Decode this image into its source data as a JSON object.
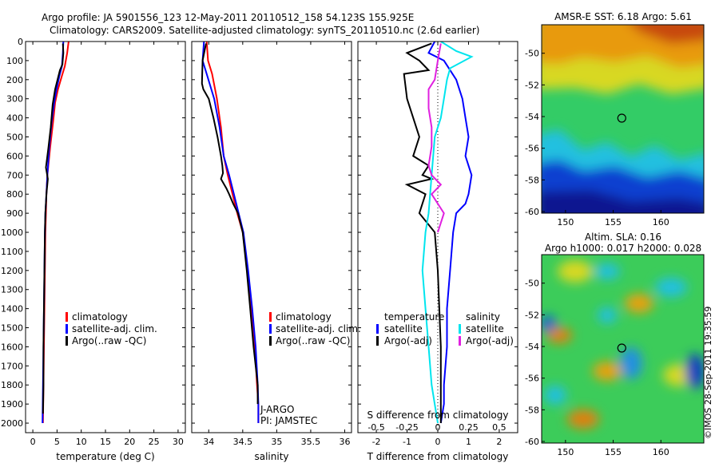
{
  "header": {
    "line1": "Argo profile: JA 5901556_123 12-May-2011 20110512_158 54.123S 155.925E",
    "line2": "Climatology: CARS2009. Satellite-adjusted climatology: synTS_20110510.nc (2.6d earlier)"
  },
  "colors": {
    "climatology": "#ff0000",
    "satellite": "#0000ff",
    "argo": "#000000",
    "satellite_salinity": "#00e5ee",
    "argo_salinity": "#e020e0"
  },
  "chart_data": [
    {
      "type": "line",
      "id": "temperature",
      "xlabel": "temperature (deg C)",
      "ylabel": "",
      "xlim": [
        -1.5,
        31.5
      ],
      "ylim": [
        2050,
        0
      ],
      "xticks": [
        0,
        5,
        10,
        15,
        20,
        25,
        30
      ],
      "yticks": [
        0,
        100,
        200,
        300,
        400,
        500,
        600,
        700,
        800,
        900,
        1000,
        1100,
        1200,
        1300,
        1400,
        1500,
        1600,
        1700,
        1800,
        1900,
        2000
      ],
      "legend": [
        "climatology",
        "satellite-adj. clim.",
        "Argo(..raw -QC)"
      ],
      "series": [
        {
          "name": "climatology",
          "color": "#ff0000",
          "x": [
            7.4,
            7.1,
            6.6,
            6.0,
            5.2,
            4.6,
            4.2,
            3.6,
            3.0,
            2.8,
            2.7,
            2.6,
            2.5,
            2.4,
            2.3,
            2.2,
            2.1
          ],
          "y": [
            0,
            60,
            130,
            180,
            250,
            320,
            420,
            550,
            700,
            800,
            900,
            1000,
            1200,
            1400,
            1600,
            1800,
            2000
          ]
        },
        {
          "name": "satellite-adj. clim.",
          "color": "#0000ff",
          "x": [
            6.3,
            6.2,
            6.0,
            5.5,
            4.9,
            4.4,
            3.9,
            3.4,
            3.0,
            2.8,
            2.6,
            2.5,
            2.4,
            2.3,
            2.2,
            2.1,
            2.0
          ],
          "y": [
            0,
            60,
            130,
            180,
            250,
            320,
            420,
            550,
            700,
            800,
            900,
            1000,
            1200,
            1400,
            1600,
            1800,
            2000
          ]
        },
        {
          "name": "Argo(..raw -QC)",
          "color": "#000000",
          "x": [
            6.2,
            6.3,
            6.1,
            5.6,
            4.6,
            4.1,
            3.7,
            3.2,
            2.7,
            3.1,
            2.8,
            2.6,
            2.5,
            2.4,
            2.3,
            2.2,
            2.2,
            2.1
          ],
          "y": [
            10,
            60,
            120,
            150,
            250,
            330,
            450,
            560,
            660,
            720,
            800,
            900,
            1000,
            1200,
            1400,
            1600,
            1800,
            1950
          ]
        }
      ]
    },
    {
      "type": "line",
      "id": "salinity",
      "xlabel": "salinity",
      "xlim": [
        33.75,
        36.1
      ],
      "ylim": [
        2050,
        0
      ],
      "xticks": [
        34,
        34.5,
        35,
        35.5,
        36
      ],
      "legend": [
        "climatology",
        "satellite-adj. clim.",
        "Argo(..raw -QC)"
      ],
      "annotation": [
        "J-ARGO",
        "PI: JAMSTEC"
      ],
      "series": [
        {
          "name": "climatology",
          "color": "#ff0000",
          "x": [
            33.97,
            33.99,
            34.05,
            34.12,
            34.18,
            34.22,
            34.28,
            34.35,
            34.42,
            34.5,
            34.57,
            34.63,
            34.68,
            34.71,
            34.73,
            34.73
          ],
          "y": [
            0,
            100,
            170,
            300,
            450,
            600,
            700,
            800,
            900,
            1000,
            1200,
            1400,
            1600,
            1800,
            1900,
            2000
          ]
        },
        {
          "name": "satellite-adj. clim.",
          "color": "#0000ff",
          "x": [
            33.93,
            33.91,
            33.97,
            34.08,
            34.16,
            34.22,
            34.3,
            34.37,
            34.44,
            34.51,
            34.58,
            34.64,
            34.69,
            34.72,
            34.73,
            34.73
          ],
          "y": [
            0,
            100,
            170,
            300,
            450,
            600,
            700,
            800,
            900,
            1000,
            1200,
            1400,
            1600,
            1800,
            1900,
            2000
          ]
        },
        {
          "name": "Argo(..raw -QC)",
          "color": "#000000",
          "x": [
            33.96,
            33.91,
            33.9,
            33.92,
            34.0,
            34.07,
            34.13,
            34.18,
            34.2,
            34.21,
            34.18,
            34.26,
            34.3,
            34.36,
            34.43,
            34.5,
            34.56,
            34.61,
            34.66,
            34.69,
            34.72,
            34.72
          ],
          "y": [
            10,
            100,
            220,
            250,
            300,
            400,
            500,
            600,
            650,
            690,
            720,
            770,
            800,
            850,
            900,
            1000,
            1200,
            1400,
            1600,
            1700,
            1800,
            1900
          ]
        }
      ]
    },
    {
      "type": "line",
      "id": "differences",
      "xlabel": "T difference from climatology",
      "xlabel_top": "S difference from climatology",
      "xlim": [
        -2.6,
        2.6
      ],
      "ylim": [
        2050,
        0
      ],
      "xticks": [
        -2,
        -1,
        0,
        1,
        2
      ],
      "xticks_top": [
        "-0.5",
        "-0.25",
        "0",
        "0.25",
        "0.5"
      ],
      "legend_temperature_title": "temperature",
      "legend_salinity_title": "salinity",
      "legend_temperature": [
        "satellite",
        "Argo(-adj)"
      ],
      "legend_salinity": [
        "satellite",
        "Argo(-adj)"
      ],
      "series": [
        {
          "name": "temperature satellite",
          "color": "#0000ff",
          "x": [
            -0.1,
            -0.3,
            0.2,
            0.6,
            0.8,
            0.9,
            1.0,
            0.9,
            1.1,
            1.0,
            0.9,
            0.6,
            0.5,
            0.4,
            0.3,
            0.3,
            0.2,
            0.2,
            0.1
          ],
          "y": [
            0,
            60,
            100,
            200,
            300,
            400,
            500,
            600,
            700,
            800,
            850,
            900,
            1000,
            1200,
            1400,
            1600,
            1800,
            1900,
            2000
          ]
        },
        {
          "name": "temperature Argo(-adj)",
          "color": "#000000",
          "x": [
            -0.2,
            -1.0,
            -0.6,
            -0.3,
            -1.1,
            -1.0,
            -0.8,
            -0.6,
            -0.8,
            -0.3,
            -0.5,
            -0.2,
            -1.0,
            -0.4,
            -0.6,
            -0.1,
            0.0,
            0.1,
            0.1
          ],
          "y": [
            10,
            60,
            100,
            150,
            170,
            300,
            400,
            500,
            600,
            650,
            700,
            720,
            750,
            800,
            900,
            1000,
            1200,
            1600,
            2000
          ]
        },
        {
          "name": "salinity satellite",
          "color": "#00e5ee",
          "x": [
            0.1,
            0.6,
            1.1,
            0.4,
            0.3,
            0.2,
            0.1,
            -0.1,
            -0.2,
            -0.3,
            -0.4,
            -0.5,
            -0.4,
            -0.3,
            -0.2,
            0.0
          ],
          "y": [
            0,
            50,
            80,
            140,
            200,
            300,
            400,
            500,
            700,
            900,
            1000,
            1200,
            1400,
            1600,
            1800,
            2000
          ]
        },
        {
          "name": "salinity Argo(-adj)",
          "color": "#e020e0",
          "x": [
            0.1,
            0.0,
            -0.1,
            -0.3,
            -0.3,
            -0.2,
            -0.2,
            -0.3,
            -0.2,
            0.1,
            -0.2,
            0.2,
            0.0
          ],
          "y": [
            10,
            100,
            200,
            250,
            350,
            450,
            550,
            650,
            700,
            750,
            800,
            900,
            1000
          ]
        }
      ]
    },
    {
      "type": "heatmap",
      "id": "sst-map",
      "title": "AMSR-E SST: 6.18 Argo: 5.61",
      "xlim": [
        147.5,
        164.5
      ],
      "ylim": [
        -60.1,
        -48.2
      ],
      "xticks": [
        150,
        155,
        160
      ],
      "yticks": [
        -50,
        -52,
        -54,
        -56,
        -58,
        -60
      ],
      "argo_position": [
        155.9,
        -54.1
      ]
    },
    {
      "type": "heatmap",
      "id": "sla-map",
      "title": [
        "Altim. SLA: 0.16",
        "Argo h1000: 0.017 h2000: 0.028"
      ],
      "xlim": [
        147.5,
        164.5
      ],
      "ylim": [
        -60.1,
        -48.2
      ],
      "xticks": [
        150,
        155,
        160
      ],
      "yticks": [
        -50,
        -52,
        -54,
        -56,
        -58,
        -60
      ],
      "argo_position": [
        155.9,
        -54.1
      ]
    }
  ],
  "footer": {
    "stamp": "©IMOS 28-Sep-2011 19:35:59"
  }
}
